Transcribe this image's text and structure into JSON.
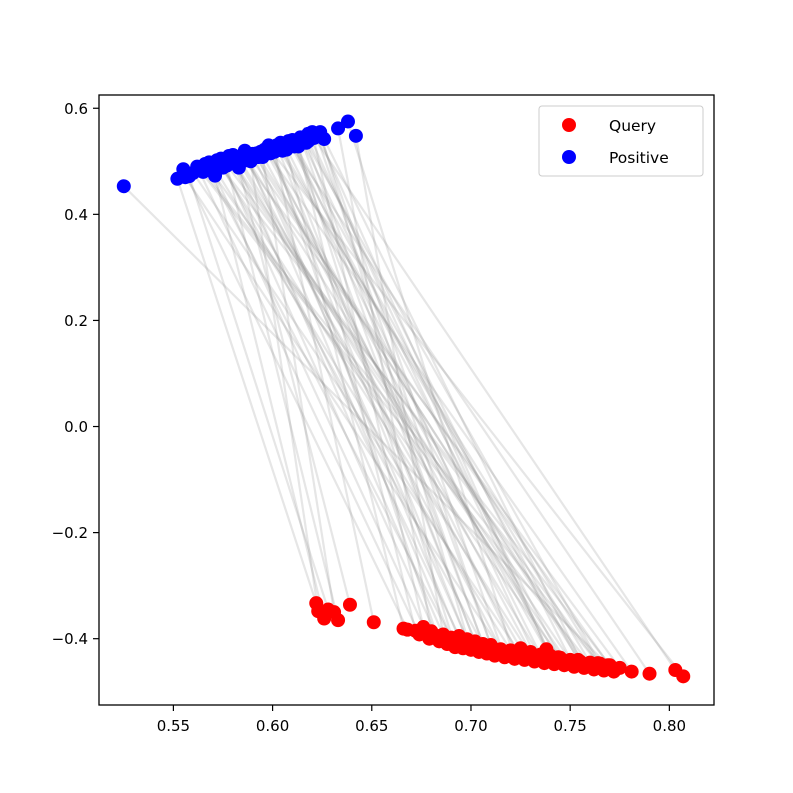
{
  "chart_data": {
    "type": "scatter",
    "title": "",
    "xlabel": "",
    "ylabel": "",
    "xlim": [
      0.5125,
      0.8225
    ],
    "ylim": [
      -0.525,
      0.625
    ],
    "xticks": [
      0.55,
      0.6,
      0.65,
      0.7,
      0.75,
      0.8
    ],
    "xtick_labels": [
      "0.55",
      "0.60",
      "0.65",
      "0.70",
      "0.75",
      "0.80"
    ],
    "yticks": [
      -0.4,
      -0.2,
      0.0,
      0.2,
      0.4,
      0.6
    ],
    "ytick_labels": [
      "−0.4",
      "−0.2",
      "0.0",
      "0.2",
      "0.4",
      "0.6"
    ],
    "grid": false,
    "legend_position": "top-right",
    "connecting_lines": "gray translucent segments link each query to its positive",
    "series": [
      {
        "name": "Query",
        "color": "#ff0000",
        "x": [
          0.622,
          0.626,
          0.628,
          0.633,
          0.639,
          0.623,
          0.631,
          0.651,
          0.666,
          0.672,
          0.676,
          0.68,
          0.686,
          0.69,
          0.694,
          0.698,
          0.702,
          0.706,
          0.71,
          0.715,
          0.72,
          0.725,
          0.73,
          0.735,
          0.74,
          0.745,
          0.75,
          0.755,
          0.76,
          0.765,
          0.77,
          0.775,
          0.781,
          0.79,
          0.803,
          0.807,
          0.668,
          0.674,
          0.679,
          0.684,
          0.688,
          0.692,
          0.696,
          0.7,
          0.704,
          0.708,
          0.712,
          0.717,
          0.722,
          0.727,
          0.732,
          0.737,
          0.742,
          0.747,
          0.752,
          0.757,
          0.762,
          0.767,
          0.772,
          0.683,
          0.691,
          0.699,
          0.707,
          0.716,
          0.724,
          0.733,
          0.741,
          0.749,
          0.758,
          0.766,
          0.738,
          0.744,
          0.754,
          0.764,
          0.769
        ],
        "y": [
          -0.333,
          -0.362,
          -0.345,
          -0.365,
          -0.336,
          -0.348,
          -0.35,
          -0.369,
          -0.381,
          -0.385,
          -0.378,
          -0.386,
          -0.392,
          -0.398,
          -0.395,
          -0.401,
          -0.405,
          -0.41,
          -0.412,
          -0.42,
          -0.422,
          -0.418,
          -0.425,
          -0.43,
          -0.432,
          -0.436,
          -0.44,
          -0.443,
          -0.445,
          -0.447,
          -0.45,
          -0.455,
          -0.462,
          -0.466,
          -0.459,
          -0.471,
          -0.383,
          -0.392,
          -0.4,
          -0.405,
          -0.41,
          -0.416,
          -0.418,
          -0.421,
          -0.425,
          -0.428,
          -0.432,
          -0.435,
          -0.438,
          -0.44,
          -0.443,
          -0.446,
          -0.448,
          -0.45,
          -0.453,
          -0.455,
          -0.458,
          -0.46,
          -0.462,
          -0.395,
          -0.403,
          -0.41,
          -0.418,
          -0.426,
          -0.432,
          -0.437,
          -0.442,
          -0.447,
          -0.452,
          -0.456,
          -0.42,
          -0.435,
          -0.44,
          -0.446,
          -0.45
        ]
      },
      {
        "name": "Positive",
        "color": "#0000ff",
        "x": [
          0.525,
          0.552,
          0.555,
          0.558,
          0.562,
          0.565,
          0.568,
          0.571,
          0.574,
          0.577,
          0.58,
          0.583,
          0.586,
          0.589,
          0.592,
          0.595,
          0.598,
          0.601,
          0.604,
          0.607,
          0.61,
          0.613,
          0.616,
          0.62,
          0.624,
          0.633,
          0.638,
          0.642,
          0.56,
          0.566,
          0.572,
          0.578,
          0.584,
          0.59,
          0.596,
          0.602,
          0.608,
          0.614,
          0.618,
          0.622,
          0.626,
          0.556,
          0.563,
          0.57,
          0.576,
          0.582,
          0.588,
          0.594,
          0.6,
          0.606,
          0.612,
          0.618,
          0.624,
          0.569,
          0.575,
          0.581,
          0.587,
          0.593,
          0.599,
          0.605,
          0.611,
          0.617,
          0.623,
          0.573,
          0.579,
          0.585,
          0.591,
          0.597,
          0.603,
          0.609,
          0.615,
          0.621,
          0.586,
          0.598,
          0.61
        ],
        "y": [
          0.453,
          0.467,
          0.485,
          0.472,
          0.49,
          0.48,
          0.498,
          0.473,
          0.505,
          0.492,
          0.512,
          0.488,
          0.52,
          0.5,
          0.515,
          0.508,
          0.53,
          0.518,
          0.535,
          0.522,
          0.54,
          0.528,
          0.545,
          0.555,
          0.548,
          0.562,
          0.575,
          0.548,
          0.478,
          0.495,
          0.502,
          0.51,
          0.5,
          0.514,
          0.522,
          0.53,
          0.538,
          0.545,
          0.538,
          0.55,
          0.542,
          0.47,
          0.485,
          0.492,
          0.498,
          0.506,
          0.512,
          0.518,
          0.525,
          0.532,
          0.54,
          0.552,
          0.555,
          0.482,
          0.488,
          0.495,
          0.502,
          0.508,
          0.515,
          0.52,
          0.528,
          0.535,
          0.548,
          0.494,
          0.5,
          0.506,
          0.511,
          0.518,
          0.524,
          0.531,
          0.538,
          0.544,
          0.512,
          0.526,
          0.54
        ]
      }
    ],
    "pairs": [
      [
        0,
        1
      ],
      [
        1,
        7
      ],
      [
        2,
        3
      ],
      [
        3,
        9
      ],
      [
        4,
        11
      ],
      [
        5,
        13
      ],
      [
        6,
        15
      ],
      [
        7,
        17
      ],
      [
        8,
        19
      ],
      [
        9,
        21
      ],
      [
        10,
        23
      ],
      [
        11,
        25
      ],
      [
        12,
        27
      ],
      [
        13,
        29
      ],
      [
        14,
        31
      ],
      [
        15,
        33
      ],
      [
        16,
        35
      ],
      [
        17,
        37
      ],
      [
        18,
        39
      ],
      [
        19,
        41
      ],
      [
        20,
        43
      ],
      [
        21,
        45
      ],
      [
        22,
        47
      ],
      [
        23,
        49
      ],
      [
        24,
        51
      ],
      [
        25,
        53
      ],
      [
        26,
        55
      ],
      [
        27,
        57
      ],
      [
        28,
        59
      ],
      [
        29,
        61
      ],
      [
        30,
        63
      ],
      [
        31,
        65
      ],
      [
        32,
        67
      ],
      [
        33,
        69
      ],
      [
        34,
        71
      ],
      [
        35,
        73
      ],
      [
        36,
        2
      ],
      [
        37,
        4
      ],
      [
        38,
        6
      ],
      [
        39,
        8
      ],
      [
        40,
        10
      ],
      [
        41,
        12
      ],
      [
        42,
        14
      ],
      [
        43,
        16
      ],
      [
        44,
        18
      ],
      [
        45,
        20
      ],
      [
        46,
        22
      ],
      [
        47,
        24
      ],
      [
        48,
        26
      ],
      [
        49,
        28
      ],
      [
        50,
        30
      ],
      [
        51,
        32
      ],
      [
        52,
        34
      ],
      [
        53,
        36
      ],
      [
        54,
        38
      ],
      [
        55,
        40
      ],
      [
        56,
        42
      ],
      [
        57,
        44
      ],
      [
        58,
        46
      ],
      [
        59,
        48
      ],
      [
        60,
        50
      ],
      [
        61,
        52
      ],
      [
        62,
        54
      ],
      [
        63,
        56
      ],
      [
        64,
        58
      ],
      [
        65,
        60
      ],
      [
        66,
        62
      ],
      [
        67,
        64
      ],
      [
        68,
        66
      ],
      [
        69,
        68
      ],
      [
        70,
        70
      ],
      [
        71,
        72
      ],
      [
        72,
        74
      ],
      [
        73,
        5
      ],
      [
        74,
        0
      ]
    ]
  }
}
